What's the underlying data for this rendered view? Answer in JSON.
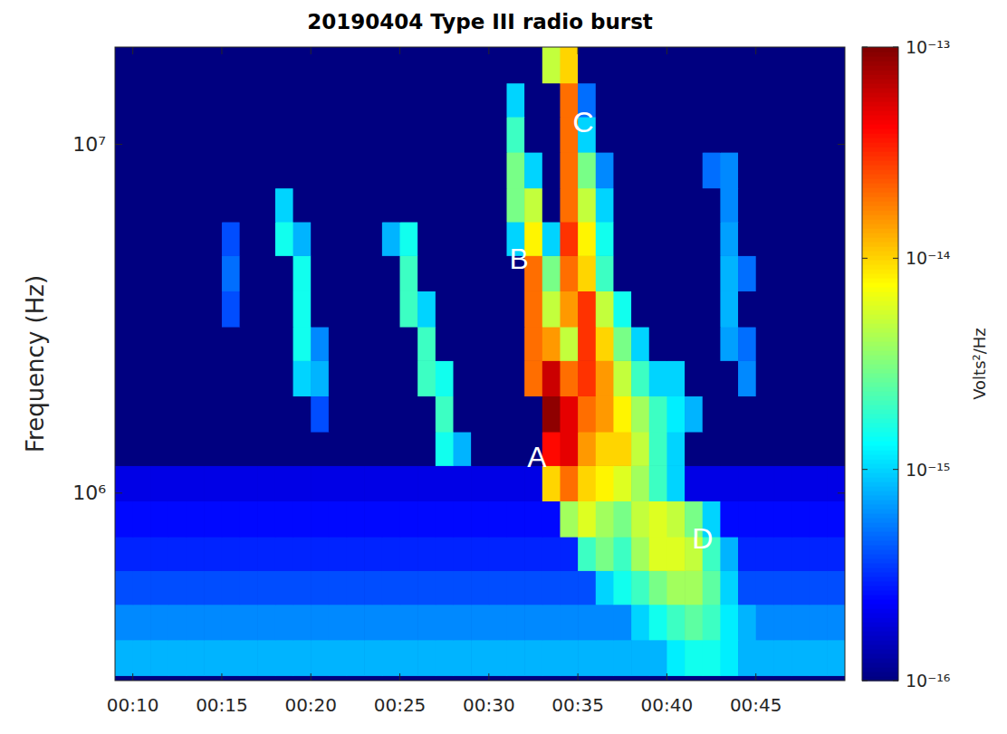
{
  "chart_data": {
    "type": "heatmap",
    "title": "20190404 Type III radio burst",
    "y_label": "Frequency (Hz)",
    "log": "y",
    "xlim": [
      9,
      50
    ],
    "xticks": [
      {
        "value": 10,
        "label": "00:10"
      },
      {
        "value": 15,
        "label": "00:15"
      },
      {
        "value": 20,
        "label": "00:20"
      },
      {
        "value": 25,
        "label": "00:25"
      },
      {
        "value": 30,
        "label": "00:30"
      },
      {
        "value": 35,
        "label": "00:35"
      },
      {
        "value": 40,
        "label": "00:40"
      },
      {
        "value": 45,
        "label": "00:45"
      }
    ],
    "ylim": [
      290000,
      19000000
    ],
    "yticks": [
      {
        "value": 1000000,
        "label": "10⁶"
      },
      {
        "value": 10000000,
        "label": "10⁷"
      }
    ],
    "x_bins": [
      9,
      10,
      11,
      12,
      13,
      14,
      15,
      16,
      17,
      18,
      19,
      20,
      21,
      22,
      23,
      24,
      25,
      26,
      27,
      28,
      29,
      30,
      31,
      32,
      33,
      34,
      35,
      36,
      37,
      38,
      39,
      40,
      41,
      42,
      43,
      44,
      45,
      46,
      47,
      48,
      49,
      50
    ],
    "y_bins": [
      300000,
      380000,
      480000,
      600000,
      750000,
      950000,
      1200000,
      1500000,
      1900000,
      2400000,
      3000000,
      3800000,
      4800000,
      6000000,
      7500000,
      9500000,
      12000000,
      15000000,
      20000000
    ],
    "cells": [
      [
        8e-16,
        8e-16,
        8e-16,
        8e-16,
        8e-16,
        8e-16,
        8e-16,
        8e-16,
        8e-16,
        8e-16,
        8e-16,
        8e-16,
        8e-16,
        8e-16,
        8e-16,
        8e-16,
        8e-16,
        8e-16,
        8e-16,
        8e-16,
        8e-16,
        8e-16,
        8e-16,
        8e-16,
        8e-16,
        8e-16,
        8e-16,
        8e-16,
        8e-16,
        8e-16,
        8e-16,
        1.2e-15,
        1.5e-15,
        1.5e-15,
        1.2e-15,
        8e-16,
        8e-16,
        8e-16,
        8e-16,
        8e-16,
        8e-16
      ],
      [
        6e-16,
        6e-16,
        6e-16,
        6e-16,
        6e-16,
        6e-16,
        6e-16,
        6e-16,
        6e-16,
        6e-16,
        6e-16,
        6e-16,
        6e-16,
        6e-16,
        6e-16,
        6e-16,
        6e-16,
        6e-16,
        6e-16,
        6e-16,
        6e-16,
        6e-16,
        6e-16,
        6e-16,
        6e-16,
        6e-16,
        6e-16,
        6e-16,
        6e-16,
        1e-15,
        1.5e-15,
        2e-15,
        2.5e-15,
        2e-15,
        1.2e-15,
        8e-16,
        6e-16,
        6e-16,
        6e-16,
        6e-16,
        6e-16
      ],
      [
        4e-16,
        4e-16,
        4e-16,
        4e-16,
        4e-16,
        4e-16,
        4e-16,
        4e-16,
        4e-16,
        4e-16,
        4e-16,
        4e-16,
        4e-16,
        4e-16,
        4e-16,
        4e-16,
        4e-16,
        4e-16,
        4e-16,
        4e-16,
        4e-16,
        4e-16,
        4e-16,
        4e-16,
        4e-16,
        4e-16,
        4e-16,
        1e-15,
        1.5e-15,
        2e-15,
        3e-15,
        4e-15,
        4e-15,
        2.5e-15,
        1e-15,
        4e-16,
        4e-16,
        4e-16,
        4e-16,
        4e-16,
        4e-16
      ],
      [
        3e-16,
        3e-16,
        3e-16,
        3e-16,
        3e-16,
        3e-16,
        3e-16,
        3e-16,
        3e-16,
        3e-16,
        3e-16,
        3e-16,
        3e-16,
        3e-16,
        3e-16,
        3e-16,
        3e-16,
        3e-16,
        3e-16,
        3e-16,
        3e-16,
        3e-16,
        3e-16,
        3e-16,
        3e-16,
        3e-16,
        2e-15,
        3e-15,
        2e-15,
        4e-15,
        6e-15,
        6e-15,
        5e-15,
        2e-15,
        8e-16,
        3e-16,
        3e-16,
        3e-16,
        3e-16,
        3e-16,
        3e-16
      ],
      [
        2.5e-16,
        2.5e-16,
        2.5e-16,
        2.5e-16,
        2.5e-16,
        2.5e-16,
        2.5e-16,
        2.5e-16,
        2.5e-16,
        2.5e-16,
        2.5e-16,
        2.5e-16,
        2.5e-16,
        2.5e-16,
        2.5e-16,
        2.5e-16,
        2.5e-16,
        2.5e-16,
        2.5e-16,
        2.5e-16,
        2.5e-16,
        2.5e-16,
        2.5e-16,
        2.5e-16,
        2.5e-16,
        4e-15,
        6e-15,
        4e-15,
        3e-15,
        5e-15,
        6e-15,
        5e-15,
        3e-15,
        1e-15,
        2.5e-16,
        2.5e-16,
        2.5e-16,
        2.5e-16,
        2.5e-16,
        2.5e-16,
        2.5e-16
      ],
      [
        2e-16,
        2e-16,
        2e-16,
        2e-16,
        2e-16,
        2e-16,
        2e-16,
        2e-16,
        2e-16,
        2e-16,
        2e-16,
        2e-16,
        2e-16,
        2e-16,
        2e-16,
        2e-16,
        2e-16,
        2e-16,
        2e-16,
        2e-16,
        2e-16,
        2e-16,
        2e-16,
        2e-16,
        1e-14,
        2e-14,
        1e-14,
        8e-15,
        6e-15,
        4e-15,
        2e-15,
        1e-15,
        2e-16,
        2e-16,
        2e-16,
        2e-16,
        2e-16,
        2e-16,
        2e-16,
        2e-16,
        2e-16
      ],
      [
        1e-16,
        1e-16,
        1e-16,
        1e-16,
        1e-16,
        1e-16,
        1e-16,
        1e-16,
        1e-16,
        1e-16,
        1e-16,
        1e-16,
        1e-16,
        1e-16,
        1e-16,
        1e-16,
        1e-16,
        1e-16,
        1.5e-15,
        8e-16,
        1e-16,
        1e-16,
        1e-16,
        1e-16,
        4e-14,
        5e-14,
        1.5e-14,
        1e-14,
        1e-14,
        5e-15,
        2e-15,
        1e-15,
        1e-16,
        1e-16,
        1e-16,
        1e-16,
        1e-16,
        1e-16,
        1e-16,
        1e-16,
        1e-16
      ],
      [
        1e-16,
        1e-16,
        1e-16,
        1e-16,
        1e-16,
        1e-16,
        1e-16,
        1e-16,
        1e-16,
        1e-16,
        1e-16,
        4e-16,
        1e-16,
        1e-16,
        1e-16,
        1e-16,
        1e-16,
        1e-16,
        2e-15,
        1e-16,
        1e-16,
        1e-16,
        1e-16,
        1e-16,
        9e-14,
        5e-14,
        2e-14,
        1.5e-14,
        8e-15,
        4e-15,
        2e-15,
        1.2e-15,
        8e-16,
        1e-16,
        1e-16,
        1e-16,
        1e-16,
        1e-16,
        1e-16,
        1e-16,
        1e-16
      ],
      [
        1e-16,
        1e-16,
        1e-16,
        1e-16,
        1e-16,
        1e-16,
        1e-16,
        1e-16,
        1e-16,
        1e-16,
        1e-15,
        8e-16,
        1e-16,
        1e-16,
        1e-16,
        1e-16,
        1e-16,
        2e-15,
        1.5e-15,
        1e-16,
        1e-16,
        1e-16,
        1e-16,
        2e-14,
        6e-14,
        2e-14,
        3e-14,
        1.5e-14,
        5e-15,
        2e-15,
        1e-15,
        1e-15,
        1e-16,
        1e-16,
        1e-16,
        6e-16,
        1e-16,
        1e-16,
        1e-16,
        1e-16,
        1e-16
      ],
      [
        1e-16,
        1e-16,
        1e-16,
        1e-16,
        1e-16,
        1e-16,
        1e-16,
        1e-16,
        1e-16,
        1e-16,
        1.5e-15,
        6e-16,
        1e-16,
        1e-16,
        1e-16,
        1e-16,
        1e-16,
        2e-15,
        1e-16,
        1e-16,
        1e-16,
        1e-16,
        1e-16,
        2e-14,
        1.5e-14,
        5e-15,
        3e-14,
        1e-14,
        3e-15,
        1e-15,
        1e-16,
        1e-16,
        1e-16,
        1e-16,
        7e-16,
        5e-16,
        1e-16,
        1e-16,
        1e-16,
        1e-16,
        1e-16
      ],
      [
        1e-16,
        1e-16,
        1e-16,
        1e-16,
        1e-16,
        1e-16,
        4e-16,
        1e-16,
        1e-16,
        1e-16,
        1.5e-15,
        1e-16,
        1e-16,
        1e-16,
        1e-16,
        1e-16,
        2e-15,
        1e-15,
        1e-16,
        1e-16,
        1e-16,
        1e-16,
        1e-16,
        2e-14,
        5e-15,
        1.5e-14,
        3e-14,
        5e-15,
        1.5e-15,
        1e-16,
        1e-16,
        1e-16,
        1e-16,
        1e-16,
        8e-16,
        1e-16,
        1e-16,
        1e-16,
        1e-16,
        1e-16,
        1e-16
      ],
      [
        1e-16,
        1e-16,
        1e-16,
        1e-16,
        1e-16,
        1e-16,
        5e-16,
        1e-16,
        1e-16,
        1e-16,
        1.5e-15,
        1e-16,
        1e-16,
        1e-16,
        1e-16,
        1e-16,
        2e-15,
        1e-16,
        1e-16,
        1e-16,
        1e-16,
        1e-16,
        1e-16,
        2e-14,
        3e-15,
        2e-14,
        1e-14,
        2e-15,
        1e-16,
        1e-16,
        1e-16,
        1e-16,
        1e-16,
        1e-16,
        8e-16,
        5e-16,
        1e-16,
        1e-16,
        1e-16,
        1e-16,
        1e-16
      ],
      [
        1e-16,
        1e-16,
        1e-16,
        1e-16,
        1e-16,
        1e-16,
        4e-16,
        1e-16,
        1e-16,
        1.5e-15,
        8e-16,
        1e-16,
        1e-16,
        1e-16,
        1e-16,
        8e-16,
        1.5e-15,
        1e-16,
        1e-16,
        1e-16,
        1e-16,
        1e-16,
        1e-15,
        8e-15,
        1e-15,
        3e-14,
        8e-15,
        1.5e-15,
        1e-16,
        1e-16,
        1e-16,
        1e-16,
        1e-16,
        1e-16,
        7e-16,
        1e-16,
        1e-16,
        1e-16,
        1e-16,
        1e-16,
        1e-16
      ],
      [
        1e-16,
        1e-16,
        1e-16,
        1e-16,
        1e-16,
        1e-16,
        1e-16,
        1e-16,
        1e-16,
        1e-15,
        1e-16,
        1e-16,
        1e-16,
        1e-16,
        1e-16,
        1e-16,
        1e-16,
        1e-16,
        1e-16,
        1e-16,
        1e-16,
        1e-16,
        3e-15,
        5e-15,
        1e-16,
        2e-14,
        5e-15,
        1e-15,
        1e-16,
        1e-16,
        1e-16,
        1e-16,
        1e-16,
        1e-16,
        6e-16,
        1e-16,
        1e-16,
        1e-16,
        1e-16,
        1e-16,
        1e-16
      ],
      [
        1e-16,
        1e-16,
        1e-16,
        1e-16,
        1e-16,
        1e-16,
        1e-16,
        1e-16,
        1e-16,
        1e-16,
        1e-16,
        1e-16,
        1e-16,
        1e-16,
        1e-16,
        1e-16,
        1e-16,
        1e-16,
        1e-16,
        1e-16,
        1e-16,
        1e-16,
        3e-15,
        1e-15,
        1e-16,
        2e-14,
        3e-15,
        6e-16,
        1e-16,
        1e-16,
        1e-16,
        1e-16,
        1e-16,
        5e-16,
        6e-16,
        1e-16,
        1e-16,
        1e-16,
        1e-16,
        1e-16,
        1e-16
      ],
      [
        1e-16,
        1e-16,
        1e-16,
        1e-16,
        1e-16,
        1e-16,
        1e-16,
        1e-16,
        1e-16,
        1e-16,
        1e-16,
        1e-16,
        1e-16,
        1e-16,
        1e-16,
        1e-16,
        1e-16,
        1e-16,
        1e-16,
        1e-16,
        1e-16,
        1e-16,
        2e-15,
        1e-16,
        1e-16,
        2e-14,
        1e-15,
        1e-16,
        1e-16,
        1e-16,
        1e-16,
        1e-16,
        1e-16,
        1e-16,
        1e-16,
        1e-16,
        1e-16,
        1e-16,
        1e-16,
        1e-16,
        1e-16
      ],
      [
        1e-16,
        1e-16,
        1e-16,
        1e-16,
        1e-16,
        1e-16,
        1e-16,
        1e-16,
        1e-16,
        1e-16,
        1e-16,
        1e-16,
        1e-16,
        1e-16,
        1e-16,
        1e-16,
        1e-16,
        1e-16,
        1e-16,
        1e-16,
        1e-16,
        1e-16,
        1e-15,
        1e-16,
        1e-16,
        2e-14,
        5e-16,
        1e-16,
        1e-16,
        1e-16,
        1e-16,
        1e-16,
        1e-16,
        1e-16,
        1e-16,
        1e-16,
        1e-16,
        1e-16,
        1e-16,
        1e-16,
        1e-16
      ],
      [
        1e-16,
        1e-16,
        1e-16,
        1e-16,
        1e-16,
        1e-16,
        1e-16,
        1e-16,
        1e-16,
        1e-16,
        1e-16,
        1e-16,
        1e-16,
        1e-16,
        1e-16,
        1e-16,
        1e-16,
        1e-16,
        1e-16,
        1e-16,
        1e-16,
        1e-16,
        1e-16,
        1e-16,
        5e-15,
        1e-14,
        1e-16,
        1e-16,
        1e-16,
        1e-16,
        1e-16,
        1e-16,
        1e-16,
        1e-16,
        1e-16,
        1e-16,
        1e-16,
        1e-16,
        1e-16,
        1e-16,
        1e-16
      ]
    ],
    "color_label": "Volts²/Hz",
    "color_range": [
      1e-16,
      1e-13
    ],
    "color_ticks": [
      {
        "value": 1e-16,
        "label": "10⁻¹⁶"
      },
      {
        "value": 1e-15,
        "label": "10⁻¹⁵"
      },
      {
        "value": 1e-14,
        "label": "10⁻¹⁴"
      },
      {
        "value": 1e-13,
        "label": "10⁻¹³"
      }
    ],
    "annotations": [
      {
        "text": "A",
        "x": 32.7,
        "y": 1270000
      },
      {
        "text": "B",
        "x": 31.7,
        "y": 4700000
      },
      {
        "text": "C",
        "x": 35.3,
        "y": 11600000
      },
      {
        "text": "D",
        "x": 42.0,
        "y": 740000
      }
    ]
  }
}
